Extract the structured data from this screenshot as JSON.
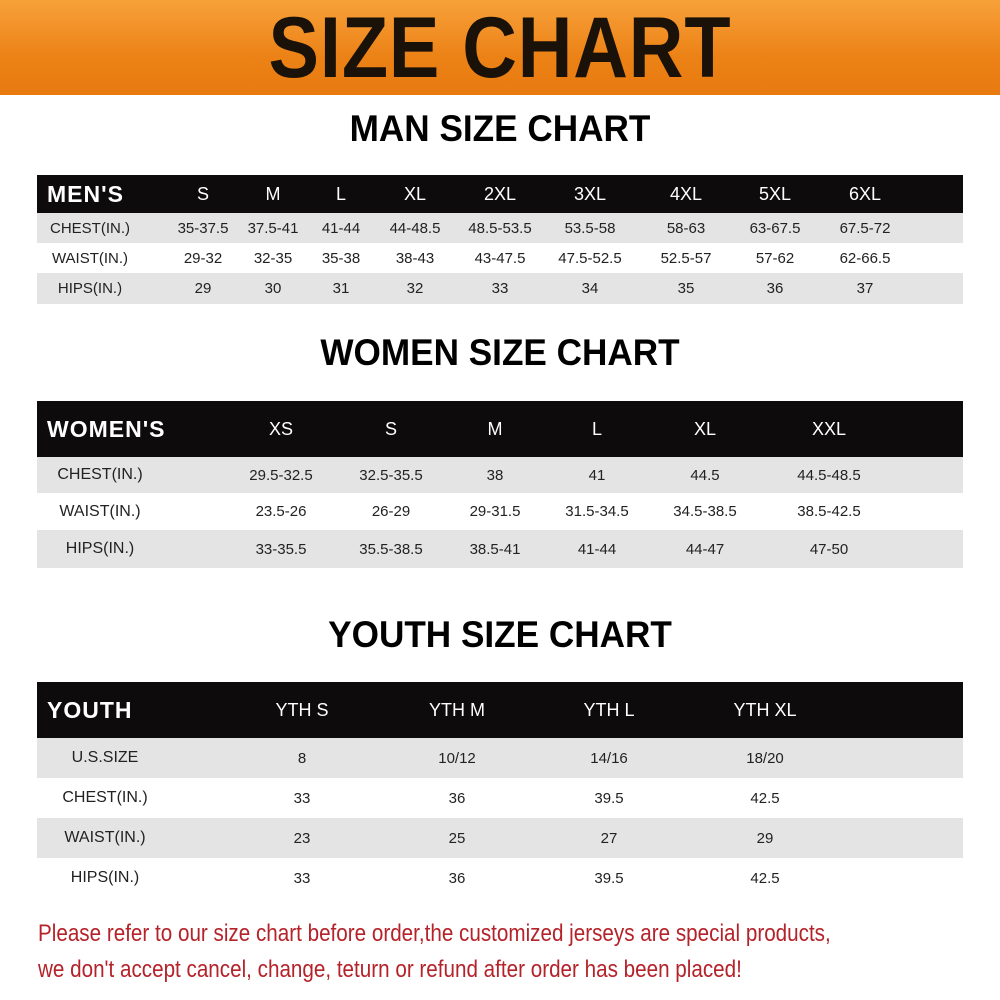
{
  "banner_title": "SIZE CHART",
  "colors": {
    "banner": "#ec8216",
    "header_row": "#0d0b0b",
    "stripe": "#e4e4e4",
    "note": "#b5232a"
  },
  "men": {
    "title": "MAN SIZE CHART",
    "header": [
      "MEN'S",
      "S",
      "M",
      "L",
      "XL",
      "2XL",
      "3XL",
      "4XL",
      "5XL",
      "6XL"
    ],
    "rows": [
      [
        "CHEST(IN.)",
        "35-37.5",
        "37.5-41",
        "41-44",
        "44-48.5",
        "48.5-53.5",
        "53.5-58",
        "58-63",
        "63-67.5",
        "67.5-72"
      ],
      [
        "WAIST(IN.)",
        "29-32",
        "32-35",
        "35-38",
        "38-43",
        "43-47.5",
        "47.5-52.5",
        "52.5-57",
        "57-62",
        "62-66.5"
      ],
      [
        "HIPS(IN.)",
        "29",
        "30",
        "31",
        "32",
        "33",
        "34",
        "35",
        "36",
        "37"
      ]
    ]
  },
  "women": {
    "title": "WOMEN SIZE CHART",
    "header": [
      "WOMEN'S",
      "XS",
      "S",
      "M",
      "L",
      "XL",
      "XXL"
    ],
    "rows": [
      [
        "CHEST(IN.)",
        "29.5-32.5",
        "32.5-35.5",
        "38",
        "41",
        "44.5",
        "44.5-48.5"
      ],
      [
        "WAIST(IN.)",
        "23.5-26",
        "26-29",
        "29-31.5",
        "31.5-34.5",
        "34.5-38.5",
        "38.5-42.5"
      ],
      [
        "HIPS(IN.)",
        "33-35.5",
        "35.5-38.5",
        "38.5-41",
        "41-44",
        "44-47",
        "47-50"
      ]
    ]
  },
  "youth": {
    "title": "YOUTH SIZE CHART",
    "header": [
      "YOUTH",
      "YTH S",
      "YTH M",
      "YTH L",
      "YTH XL"
    ],
    "rows": [
      [
        "U.S.SIZE",
        "8",
        "10/12",
        "14/16",
        "18/20"
      ],
      [
        "CHEST(IN.)",
        "33",
        "36",
        "39.5",
        "42.5"
      ],
      [
        "WAIST(IN.)",
        "23",
        "25",
        "27",
        "29"
      ],
      [
        "HIPS(IN.)",
        "33",
        "36",
        "39.5",
        "42.5"
      ]
    ]
  },
  "notice": [
    "Please refer to our size chart before order,the customized jerseys are special products,",
    "we don't accept cancel, change, teturn or refund after order has been placed!"
  ]
}
